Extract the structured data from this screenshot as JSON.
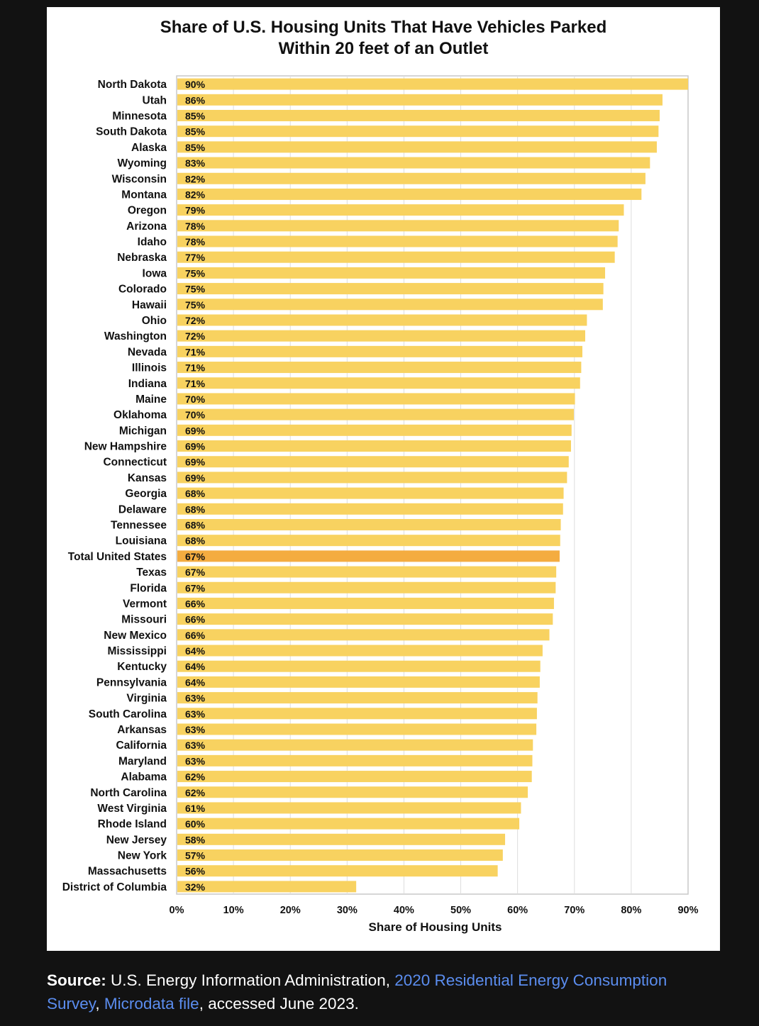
{
  "chart_data": {
    "type": "bar",
    "orientation": "horizontal",
    "title": "Share of U.S. Housing Units That Have Vehicles Parked\nWithin 20 feet of an Outlet",
    "xlabel": "Share of Housing Units",
    "ylabel": "",
    "xlim": [
      0,
      90
    ],
    "xticks": [
      "0%",
      "10%",
      "20%",
      "30%",
      "40%",
      "50%",
      "60%",
      "70%",
      "80%",
      "90%"
    ],
    "grid": "vertical",
    "bar_color": "#f8d260",
    "highlight_color": "#f4ac40",
    "highlight_category": "Total United States",
    "categories": [
      "North Dakota",
      "Utah",
      "Minnesota",
      "South Dakota",
      "Alaska",
      "Wyoming",
      "Wisconsin",
      "Montana",
      "Oregon",
      "Arizona",
      "Idaho",
      "Nebraska",
      "Iowa",
      "Colorado",
      "Hawaii",
      "Ohio",
      "Washington",
      "Nevada",
      "Illinois",
      "Indiana",
      "Maine",
      "Oklahoma",
      "Michigan",
      "New Hampshire",
      "Connecticut",
      "Kansas",
      "Georgia",
      "Delaware",
      "Tennessee",
      "Louisiana",
      "Total United States",
      "Texas",
      "Florida",
      "Vermont",
      "Missouri",
      "New Mexico",
      "Mississippi",
      "Kentucky",
      "Pennsylvania",
      "Virginia",
      "South Carolina",
      "Arkansas",
      "California",
      "Maryland",
      "Alabama",
      "North Carolina",
      "West Virginia",
      "Rhode Island",
      "New Jersey",
      "New York",
      "Massachusetts",
      "District of Columbia"
    ],
    "values": [
      90.0,
      85.5,
      85.0,
      84.8,
      84.5,
      83.3,
      82.5,
      81.8,
      78.7,
      77.8,
      77.6,
      77.1,
      75.4,
      75.1,
      75.0,
      72.2,
      71.9,
      71.4,
      71.2,
      71.0,
      70.1,
      69.9,
      69.5,
      69.4,
      69.0,
      68.7,
      68.1,
      68.0,
      67.6,
      67.5,
      67.4,
      66.8,
      66.7,
      66.4,
      66.2,
      65.6,
      64.4,
      64.0,
      63.9,
      63.5,
      63.4,
      63.3,
      62.7,
      62.6,
      62.5,
      61.8,
      60.6,
      60.3,
      57.8,
      57.4,
      56.5,
      31.6
    ],
    "value_labels": [
      "90%",
      "86%",
      "85%",
      "85%",
      "85%",
      "83%",
      "82%",
      "82%",
      "79%",
      "78%",
      "78%",
      "77%",
      "75%",
      "75%",
      "75%",
      "72%",
      "72%",
      "71%",
      "71%",
      "71%",
      "70%",
      "70%",
      "69%",
      "69%",
      "69%",
      "69%",
      "68%",
      "68%",
      "68%",
      "68%",
      "67%",
      "67%",
      "67%",
      "66%",
      "66%",
      "66%",
      "64%",
      "64%",
      "64%",
      "63%",
      "63%",
      "63%",
      "63%",
      "63%",
      "62%",
      "62%",
      "61%",
      "60%",
      "58%",
      "57%",
      "56%",
      "32%"
    ]
  },
  "source": {
    "label": "Source:",
    "text_before": " U.S. Energy Information Administration, ",
    "link1": "2020 Residential Energy Consumption Survey",
    "sep": ", ",
    "link2": "Microdata file",
    "text_after": ", accessed June 2023."
  }
}
